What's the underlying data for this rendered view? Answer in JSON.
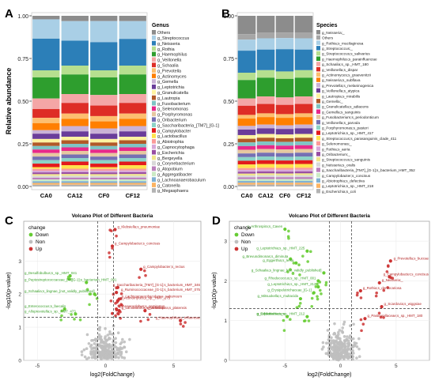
{
  "panels": {
    "a": "A",
    "b": "B",
    "c": "C",
    "d": "D"
  },
  "chart_data": [
    {
      "type": "bar",
      "stacked": true,
      "panel": "A",
      "ylabel": "Relative abundance",
      "ylim": [
        0,
        1
      ],
      "yticks": [
        "0.00",
        "0.25",
        "0.50",
        "0.75",
        "1.00"
      ],
      "categories": [
        "CA0",
        "CA12",
        "CF0",
        "CF12"
      ],
      "legend_title": "Genus",
      "legend_position": "right",
      "series": [
        {
          "name": "Others",
          "color": "#8c8c8c",
          "values": [
            0.02,
            0.03,
            0.03,
            0.03
          ]
        },
        {
          "name": "g_Streptococcus",
          "color": "#a9cfe6",
          "values": [
            0.11,
            0.11,
            0.12,
            0.1
          ]
        },
        {
          "name": "g_Neisseria",
          "color": "#2c7fb8",
          "values": [
            0.18,
            0.14,
            0.16,
            0.15
          ]
        },
        {
          "name": "g_Rothia",
          "color": "#b6df8f",
          "values": [
            0.04,
            0.05,
            0.04,
            0.05
          ]
        },
        {
          "name": "g_Haemophilus",
          "color": "#2e9e2e",
          "values": [
            0.12,
            0.11,
            0.1,
            0.11
          ]
        },
        {
          "name": "g_Veillonella",
          "color": "#f4a6a6",
          "values": [
            0.06,
            0.05,
            0.06,
            0.05
          ]
        },
        {
          "name": "g_Schaalia",
          "color": "#de2d26",
          "values": [
            0.05,
            0.06,
            0.06,
            0.06
          ]
        },
        {
          "name": "g_Prevotella",
          "color": "#fdbf6f",
          "values": [
            0.03,
            0.03,
            0.03,
            0.03
          ]
        },
        {
          "name": "g_Actinomyces",
          "color": "#ff7f00",
          "values": [
            0.04,
            0.04,
            0.04,
            0.04
          ]
        },
        {
          "name": "g_Gemella",
          "color": "#cab2d6",
          "values": [
            0.02,
            0.03,
            0.03,
            0.03
          ]
        },
        {
          "name": "g_Leptotrichia",
          "color": "#6a3d9a",
          "values": [
            0.03,
            0.03,
            0.03,
            0.03
          ]
        },
        {
          "name": "g_Granulicatella",
          "color": "#fff3a0",
          "values": [
            0.02,
            0.02,
            0.02,
            0.02
          ]
        },
        {
          "name": "g_Lautropia",
          "color": "#b15928",
          "values": [
            0.02,
            0.02,
            0.02,
            0.02
          ]
        },
        {
          "name": "g_Fusobacterium",
          "color": "#7fc4c4",
          "values": [
            0.02,
            0.02,
            0.02,
            0.02
          ]
        },
        {
          "name": "g_Selenomonas",
          "color": "#e7298a",
          "values": [
            0.02,
            0.02,
            0.02,
            0.02
          ]
        },
        {
          "name": "g_Porphyromonas",
          "color": "#e6c8a0",
          "values": [
            0.02,
            0.02,
            0.02,
            0.02
          ]
        },
        {
          "name": "g_Oribacterium",
          "color": "#7570b3",
          "values": [
            0.02,
            0.02,
            0.02,
            0.02
          ]
        },
        {
          "name": "g_Saccharibacteria_[TM7]_[G-1]",
          "color": "#8dd3c7",
          "values": [
            0.02,
            0.02,
            0.02,
            0.02
          ]
        },
        {
          "name": "g_Campylobacter",
          "color": "#e31a1c",
          "values": [
            0.02,
            0.02,
            0.02,
            0.02
          ]
        },
        {
          "name": "g_Lactobacillus",
          "color": "#ffe34d",
          "values": [
            0.01,
            0.02,
            0.01,
            0.02
          ]
        },
        {
          "name": "g_Abiotrophia",
          "color": "#fb9a99",
          "values": [
            0.01,
            0.01,
            0.01,
            0.01
          ]
        },
        {
          "name": "g_Capnocytophaga",
          "color": "#d8a8d8",
          "values": [
            0.01,
            0.01,
            0.01,
            0.01
          ]
        },
        {
          "name": "g_Escherichia",
          "color": "#984ea3",
          "values": [
            0.01,
            0.01,
            0.01,
            0.01
          ]
        },
        {
          "name": "g_Bergeyella",
          "color": "#f0e68c",
          "values": [
            0.01,
            0.01,
            0.01,
            0.01
          ]
        },
        {
          "name": "g_Corynebacterium",
          "color": "#d9d9d9",
          "values": [
            0.01,
            0.01,
            0.01,
            0.01
          ]
        },
        {
          "name": "g_Atopobium",
          "color": "#bc80bd",
          "values": [
            0.01,
            0.01,
            0.01,
            0.01
          ]
        },
        {
          "name": "g_Aggregatibacter",
          "color": "#ccebc5",
          "values": [
            0.01,
            0.01,
            0.01,
            0.01
          ]
        },
        {
          "name": "g_Lachnoanaerobaculum",
          "color": "#80b1d3",
          "values": [
            0.01,
            0.01,
            0.01,
            0.01
          ]
        },
        {
          "name": "g_Catonella",
          "color": "#fdb462",
          "values": [
            0.01,
            0.01,
            0.01,
            0.01
          ]
        },
        {
          "name": "g_Megasphaera",
          "color": "#b3b3b3",
          "values": [
            0.01,
            0.01,
            0.01,
            0.01
          ]
        }
      ]
    },
    {
      "type": "bar",
      "stacked": true,
      "panel": "B",
      "ylabel": "",
      "ylim": [
        0,
        1
      ],
      "yticks": [
        "0.00",
        "0.25",
        "0.50",
        "0.75",
        "1.00"
      ],
      "categories": [
        "CA0",
        "CA12",
        "CF0",
        "CF12"
      ],
      "legend_title": "Species",
      "legend_position": "right",
      "series": [
        {
          "name": "g_Neisseria;_",
          "color": "#8c8c8c",
          "values": [
            0.1,
            0.09,
            0.09,
            0.09
          ]
        },
        {
          "name": "Others",
          "color": "#a6a6a6",
          "values": [
            0.03,
            0.03,
            0.03,
            0.03
          ]
        },
        {
          "name": "g_Rothia;s_mucilaginosa",
          "color": "#a9cfe6",
          "values": [
            0.06,
            0.06,
            0.06,
            0.06
          ]
        },
        {
          "name": "g_Streptococcus;_",
          "color": "#2c7fb8",
          "values": [
            0.12,
            0.11,
            0.12,
            0.11
          ]
        },
        {
          "name": "g_Streptococcus;s_salivarius",
          "color": "#b6df8f",
          "values": [
            0.04,
            0.04,
            0.04,
            0.04
          ]
        },
        {
          "name": "g_Haemophilus;s_parainfluenzae",
          "color": "#2e9e2e",
          "values": [
            0.1,
            0.1,
            0.1,
            0.1
          ]
        },
        {
          "name": "g_Schaalia;s_sp._HMT_180",
          "color": "#f4a6a6",
          "values": [
            0.04,
            0.04,
            0.04,
            0.04
          ]
        },
        {
          "name": "g_Veillonella;s_dispar",
          "color": "#de2d26",
          "values": [
            0.05,
            0.05,
            0.05,
            0.05
          ]
        },
        {
          "name": "g_Actinomyces;s_graevenitzii",
          "color": "#fdbf6f",
          "values": [
            0.02,
            0.02,
            0.02,
            0.02
          ]
        },
        {
          "name": "g_Neisseria;s_subflava",
          "color": "#ff7f00",
          "values": [
            0.04,
            0.04,
            0.04,
            0.04
          ]
        },
        {
          "name": "g_Prevotella;s_melaninogenica",
          "color": "#cab2d6",
          "values": [
            0.02,
            0.02,
            0.02,
            0.02
          ]
        },
        {
          "name": "g_Veillonella;s_atypica",
          "color": "#6a3d9a",
          "values": [
            0.03,
            0.03,
            0.03,
            0.03
          ]
        },
        {
          "name": "g_Lautropia;s_mirabilis",
          "color": "#fff3a0",
          "values": [
            0.02,
            0.02,
            0.02,
            0.02
          ]
        },
        {
          "name": "g_Gemella;_",
          "color": "#b15928",
          "values": [
            0.02,
            0.02,
            0.02,
            0.02
          ]
        },
        {
          "name": "g_Granulicatella;s_adiacens",
          "color": "#7fc4c4",
          "values": [
            0.02,
            0.02,
            0.02,
            0.02
          ]
        },
        {
          "name": "g_Gemella;s_sanguinis",
          "color": "#e7298a",
          "values": [
            0.02,
            0.02,
            0.02,
            0.02
          ]
        },
        {
          "name": "g_Fusobacterium;s_periodonticum",
          "color": "#e6c8a0",
          "values": [
            0.02,
            0.02,
            0.02,
            0.02
          ]
        },
        {
          "name": "g_Veillonella;s_parvula",
          "color": "#7570b3",
          "values": [
            0.02,
            0.02,
            0.02,
            0.02
          ]
        },
        {
          "name": "g_Porphyromonas;s_pasteri",
          "color": "#8dd3c7",
          "values": [
            0.02,
            0.02,
            0.02,
            0.02
          ]
        },
        {
          "name": "g_Leptotrichia;s_sp._HMT_417",
          "color": "#e31a1c",
          "values": [
            0.02,
            0.02,
            0.02,
            0.02
          ]
        },
        {
          "name": "g_Streptococcus;s_parasanguinis_clade_411",
          "color": "#ffe34d",
          "values": [
            0.02,
            0.02,
            0.02,
            0.02
          ]
        },
        {
          "name": "g_Selenomonas;_",
          "color": "#fb9a99",
          "values": [
            0.01,
            0.01,
            0.01,
            0.01
          ]
        },
        {
          "name": "g_Rothia;s_aeria",
          "color": "#d8a8d8",
          "values": [
            0.01,
            0.01,
            0.01,
            0.01
          ]
        },
        {
          "name": "g_Oribacterium;_",
          "color": "#984ea3",
          "values": [
            0.01,
            0.01,
            0.01,
            0.01
          ]
        },
        {
          "name": "g_Streptococcus;s_sanguinis",
          "color": "#f0e68c",
          "values": [
            0.01,
            0.01,
            0.01,
            0.01
          ]
        },
        {
          "name": "g_Neisseria;s_oralis",
          "color": "#d9d9d9",
          "values": [
            0.01,
            0.01,
            0.01,
            0.01
          ]
        },
        {
          "name": "g_Saccharibacteria_[TM7]_[G-1];s_bacterium_HMT_352",
          "color": "#bc80bd",
          "values": [
            0.01,
            0.01,
            0.01,
            0.01
          ]
        },
        {
          "name": "g_Campylobacter;s_concisus",
          "color": "#ccebc5",
          "values": [
            0.01,
            0.01,
            0.01,
            0.01
          ]
        },
        {
          "name": "g_Abiotrophia;s_defectiva",
          "color": "#80b1d3",
          "values": [
            0.01,
            0.01,
            0.01,
            0.01
          ]
        },
        {
          "name": "g_Leptotrichia;s_sp._HMT_218",
          "color": "#fdb462",
          "values": [
            0.01,
            0.01,
            0.01,
            0.01
          ]
        },
        {
          "name": "g_Escherichia;s_coli",
          "color": "#b3b3b3",
          "values": [
            0.01,
            0.01,
            0.01,
            0.01
          ]
        }
      ]
    },
    {
      "type": "scatter",
      "panel": "C",
      "title": "Volcano Plot of  Different Bacteria",
      "xlabel": "log2(FoldChange)",
      "ylabel": "-log10(p-value)",
      "xlim": [
        -6,
        7
      ],
      "ylim": [
        0,
        4.2
      ],
      "xticks": [
        -5,
        0,
        5
      ],
      "yticks": [
        0,
        1,
        2,
        3
      ],
      "thresholds": {
        "x": [
          -0.58,
          0.58
        ],
        "y": 1.3
      },
      "legend_title": "change",
      "legend": [
        {
          "label": "Down",
          "color": "#66cc33"
        },
        {
          "label": "Non",
          "color": "#bfbfbf"
        },
        {
          "label": "Up",
          "color": "#cc3333"
        }
      ],
      "labeled_points": [
        {
          "label": "g_Klebsiella;s_pneumoniae",
          "x": 0.7,
          "y": 3.95,
          "change": "Up"
        },
        {
          "label": "g_Campylobacter;s_concisus",
          "x": 0.5,
          "y": 3.45,
          "change": "Up"
        },
        {
          "label": "g_Campylobacter;s_rectus",
          "x": 2.6,
          "y": 2.75,
          "change": "Up"
        },
        {
          "label": "g_Desulfobulbus;s_sp._HMT_041",
          "x": -2.6,
          "y": 2.55,
          "change": "Down"
        },
        {
          "label": "g_Peptostreptococcaceae_[XI][G-1];s_bacterium_HMT_091",
          "x": -1.4,
          "y": 2.35,
          "change": "Down"
        },
        {
          "label": "g_Saccharibacteria_[TM7]_[G-1];s_bacterium_HMT_346",
          "x": 0.9,
          "y": 2.2,
          "change": "Up"
        },
        {
          "label": "g_Schaalia;s_lingnae_[not_validly_published]",
          "x": -0.8,
          "y": 2.0,
          "change": "Down"
        },
        {
          "label": "g_Ruminococcaceae_[G-1];s_bacterium_HMT_075",
          "x": 0.8,
          "y": 2.05,
          "change": "Up"
        },
        {
          "label": "g_Lachnoanaerobaculum;s_saburreum",
          "x": 1.0,
          "y": 1.85,
          "change": "Up"
        },
        {
          "label": "g_Actinomyces;s_sp._HMT_175",
          "x": 0.9,
          "y": 1.8,
          "change": "Up"
        },
        {
          "label": "g_Anaeroglobus;s_geminatus",
          "x": 0.8,
          "y": 1.55,
          "change": "Up"
        },
        {
          "label": "g_Lactobacillus;s_salivarius",
          "x": 1.0,
          "y": 1.5,
          "change": "Up"
        },
        {
          "label": "g_Arthrospira;s_platensis",
          "x": 2.9,
          "y": 1.5,
          "change": "Up"
        },
        {
          "label": "g_Enterococcus;s_faecalis",
          "x": -3.0,
          "y": 1.55,
          "change": "Down"
        },
        {
          "label": "g_Alloprevotella;s_sp._HMT_473",
          "x": -2.2,
          "y": 1.4,
          "change": "Down"
        },
        {
          "label": "g_Haemophilus;s_influenzae",
          "x": 5.5,
          "y": 1.2,
          "change": "Up"
        }
      ]
    },
    {
      "type": "scatter",
      "panel": "D",
      "title": "Volcano Plot of  Different Bacteria",
      "xlabel": "log2(FoldChange)",
      "ylabel": "-log10(p-value)",
      "xlim": [
        -10,
        8
      ],
      "ylim": [
        0,
        3.5
      ],
      "xticks": [
        -5,
        0,
        5
      ],
      "yticks": [
        0,
        1,
        2,
        3
      ],
      "thresholds": {
        "x": [
          -1,
          1
        ],
        "y": 1.3
      },
      "legend_title": "change",
      "legend": [
        {
          "label": "Down",
          "color": "#66cc33"
        },
        {
          "label": "Non",
          "color": "#bfbfbf"
        },
        {
          "label": "Up",
          "color": "#cc3333"
        }
      ],
      "labeled_points": [
        {
          "label": "g_Arthrospira;s_Caven",
          "x": -5.0,
          "y": 3.3,
          "change": "Down"
        },
        {
          "label": "g_Leptotrichia;s_sp._HMT_225",
          "x": -3.0,
          "y": 2.75,
          "change": "Down"
        },
        {
          "label": "g_Brevundimonas;s_diminuta",
          "x": -4.5,
          "y": 2.55,
          "change": "Down"
        },
        {
          "label": "g_Eggerthia;s_lenta",
          "x": -4.0,
          "y": 2.45,
          "change": "Down"
        },
        {
          "label": "g_Prevotella;s_buccae",
          "x": 4.5,
          "y": 2.5,
          "change": "Up"
        },
        {
          "label": "g_Schaalia;s_lingnae_[not_validly_published]",
          "x": -1.5,
          "y": 2.2,
          "change": "Down"
        },
        {
          "label": "g_Campylobacter;s_concisus",
          "x": 4.4,
          "y": 2.1,
          "change": "Up"
        },
        {
          "label": "g_Rhodococcus;s_sp._HMT_001",
          "x": -2.0,
          "y": 2.0,
          "change": "Down"
        },
        {
          "label": "g_Neisseria;_",
          "x": 3.5,
          "y": 1.95,
          "change": "Up"
        },
        {
          "label": "g_Leptotrichia;s_sp._HMT_212",
          "x": -2.0,
          "y": 1.85,
          "change": "Down"
        },
        {
          "label": "g_Erysipelotrichaceae_[G-1]",
          "x": -2.4,
          "y": 1.7,
          "change": "Down"
        },
        {
          "label": "g_Rothia;s_dentocariosa",
          "x": 1.8,
          "y": 1.75,
          "change": "Up"
        },
        {
          "label": "g_Mitsuokella;s_multacida",
          "x": -3.6,
          "y": 1.55,
          "change": "Down"
        },
        {
          "label": "g_Scardovia;s_wiggsiae",
          "x": 3.7,
          "y": 1.35,
          "change": "Up"
        },
        {
          "label": "g_Bifidobacterium",
          "x": -4.8,
          "y": 1.1,
          "change": "Down"
        },
        {
          "label": "g_Leptotrichia;s_sp._HMT_212",
          "x": -3.0,
          "y": 1.1,
          "change": "Down"
        },
        {
          "label": "g_Pasteurellaceae;s_sp._HMT_180",
          "x": 2.2,
          "y": 1.05,
          "change": "Up"
        }
      ]
    }
  ]
}
